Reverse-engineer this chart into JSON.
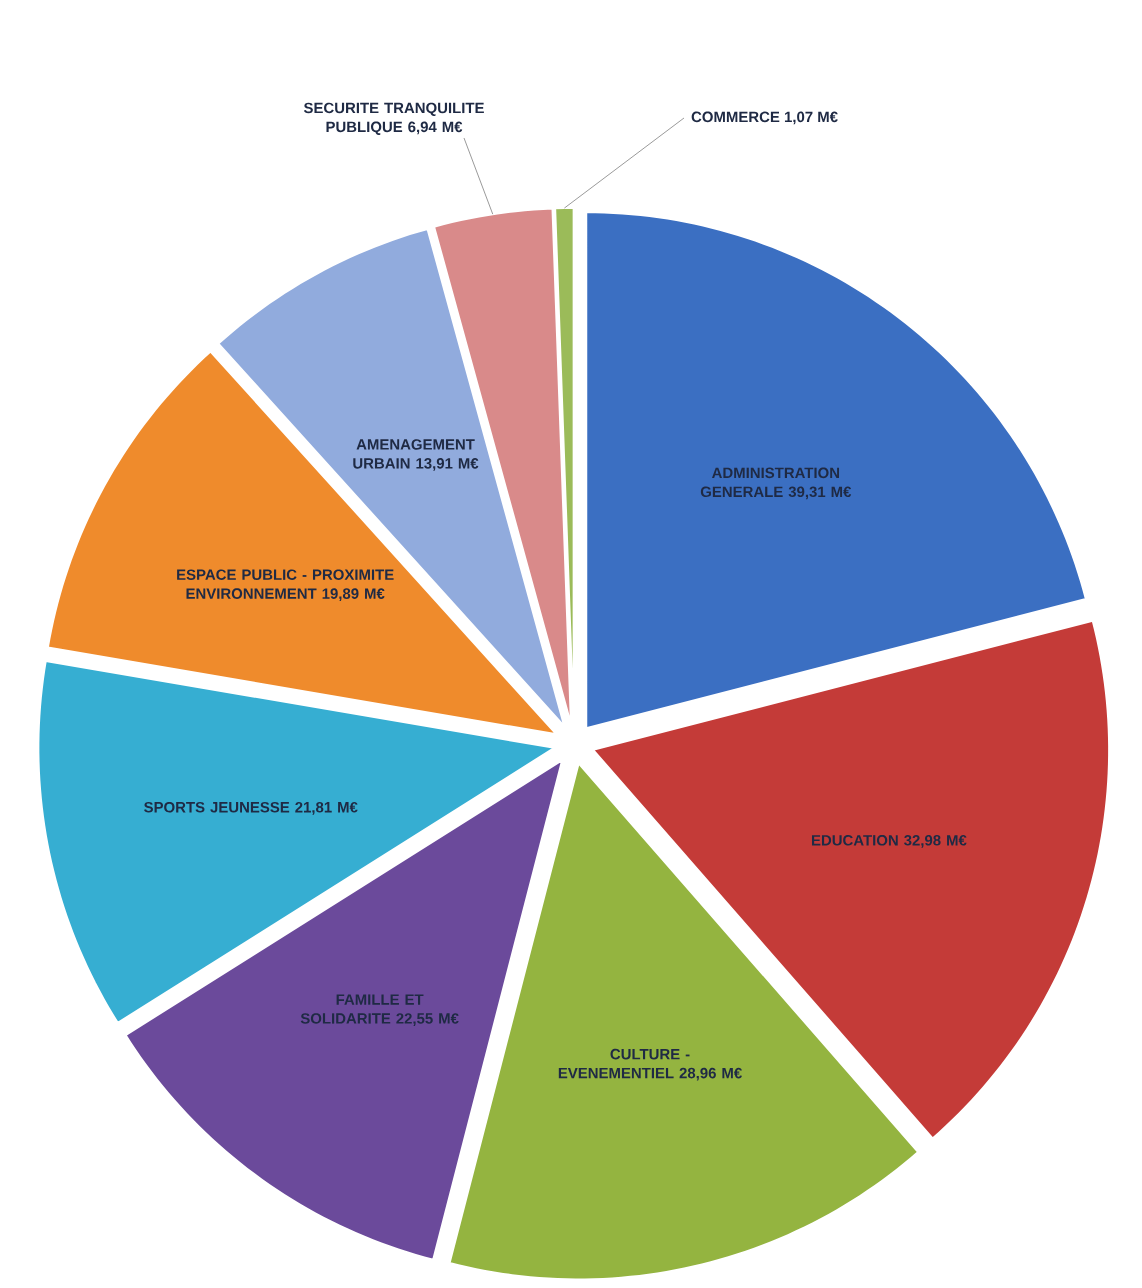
{
  "chart_data": {
    "type": "pie",
    "categories": [
      "ADMINISTRATION GENERALE",
      "EDUCATION",
      "CULTURE - EVENEMENTIEL",
      "FAMILLE ET SOLIDARITE",
      "SPORTS JEUNESSE",
      "ESPACE PUBLIC - PROXIMITE ENVIRONNEMENT",
      "AMENAGEMENT URBAIN",
      "SECURITE TRANQUILITE PUBLIQUE",
      "COMMERCE"
    ],
    "values": [
      39.31,
      32.98,
      28.96,
      22.55,
      21.81,
      19.89,
      13.91,
      6.94,
      1.07
    ],
    "value_labels": [
      "39,31 M€",
      "32,98 M€",
      "28,96 M€",
      "22,55 M€",
      "21,81 M€",
      "19,89 M€",
      "13,91 M€",
      "6,94 M€",
      "1,07 M€"
    ],
    "colors": [
      "#3b6fc2",
      "#c43b38",
      "#94b440",
      "#6b4a9b",
      "#36aed2",
      "#ef8b2c",
      "#91abdd",
      "#d98a8a",
      "#9bbb59"
    ]
  }
}
